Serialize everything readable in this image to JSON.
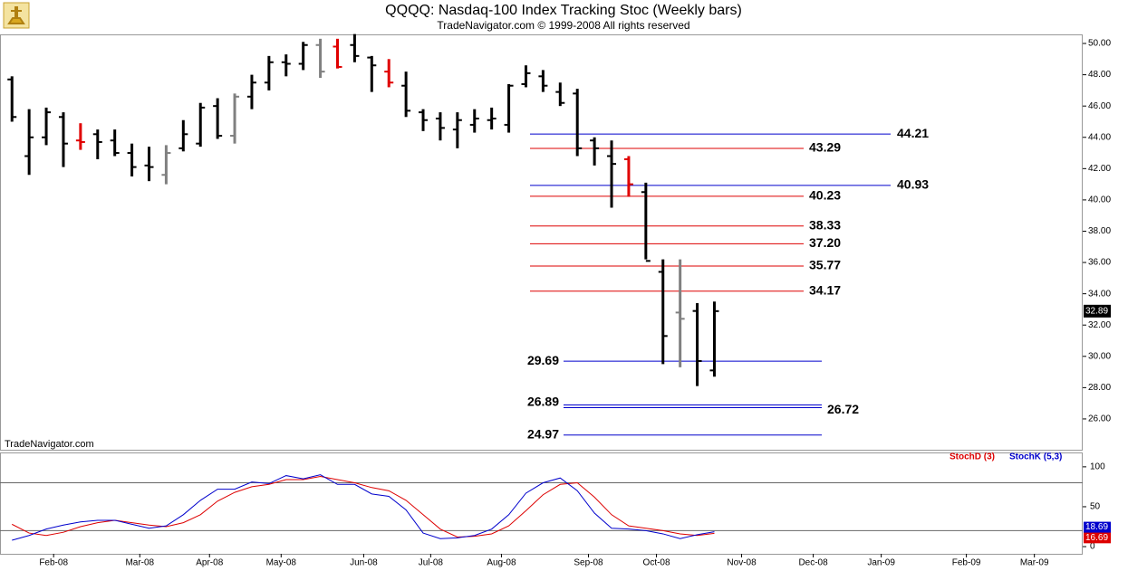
{
  "chart_data": [
    {
      "type": "ohlc",
      "title": "QQQQ:  Nasdaq-100 Index Tracking Stoc  (Weekly bars)",
      "subtitle": "TradeNavigator.com © 1999-2008 All rights reserved",
      "annotation": "TradeNavigator.com",
      "x": [
        0,
        1,
        2,
        3,
        4,
        5,
        6,
        7,
        8,
        9,
        10,
        11,
        12,
        13,
        14,
        15,
        16,
        17,
        18,
        19,
        20,
        21,
        22,
        23,
        24,
        25,
        26,
        27,
        28,
        29,
        30,
        31,
        32,
        33,
        34,
        35,
        36,
        37,
        38,
        39,
        40,
        41
      ],
      "open": [
        47.7,
        42.8,
        44.0,
        45.3,
        43.8,
        44.2,
        43.8,
        43.0,
        42.2,
        41.6,
        43.3,
        43.6,
        46.0,
        44.1,
        46.6,
        47.5,
        48.8,
        48.7,
        49.9,
        49.8,
        49.9,
        49.1,
        48.2,
        47.3,
        45.6,
        45.2,
        44.5,
        44.8,
        45.1,
        44.8,
        47.4,
        47.9,
        46.9,
        46.8,
        43.8,
        42.8,
        42.6,
        40.5,
        35.4,
        32.8,
        32.9,
        29.1
      ],
      "high": [
        47.9,
        45.8,
        45.9,
        45.6,
        44.9,
        44.5,
        44.5,
        43.6,
        43.4,
        43.5,
        45.1,
        46.2,
        46.5,
        46.8,
        48.0,
        49.2,
        49.3,
        50.1,
        50.3,
        50.3,
        50.6,
        49.2,
        49.0,
        48.2,
        45.8,
        45.6,
        45.6,
        45.8,
        45.9,
        47.4,
        48.6,
        48.3,
        47.5,
        47.1,
        44.0,
        43.8,
        42.8,
        41.1,
        36.2,
        36.2,
        33.4,
        33.5
      ],
      "low": [
        45.0,
        41.6,
        43.5,
        42.1,
        43.2,
        42.6,
        42.8,
        41.5,
        41.2,
        41.0,
        43.1,
        43.4,
        43.9,
        43.6,
        45.8,
        47.0,
        47.9,
        48.3,
        47.8,
        48.4,
        48.8,
        46.9,
        47.2,
        45.3,
        44.4,
        43.8,
        43.3,
        44.3,
        44.5,
        44.3,
        47.2,
        46.9,
        46.0,
        42.8,
        42.2,
        39.5,
        40.2,
        36.2,
        29.5,
        29.3,
        28.1,
        28.7
      ],
      "close": [
        45.3,
        44.0,
        45.6,
        43.6,
        43.7,
        43.7,
        43.0,
        42.1,
        42.1,
        43.0,
        44.2,
        45.9,
        44.1,
        46.6,
        47.5,
        48.8,
        48.7,
        49.9,
        48.2,
        48.5,
        49.2,
        48.6,
        47.5,
        45.7,
        45.1,
        44.6,
        45.1,
        45.2,
        45.2,
        47.3,
        48.1,
        47.3,
        46.2,
        43.3,
        43.3,
        42.3,
        41.0,
        36.1,
        31.3,
        32.4,
        29.7,
        32.89
      ],
      "colors": [
        "#000",
        "#000",
        "#000",
        "#000",
        "#e00000",
        "#000",
        "#000",
        "#000",
        "#000",
        "#808080",
        "#000",
        "#000",
        "#000",
        "#808080",
        "#000",
        "#000",
        "#000",
        "#000",
        "#808080",
        "#e00000",
        "#000",
        "#000",
        "#e00000",
        "#000",
        "#000",
        "#000",
        "#000",
        "#000",
        "#000",
        "#000",
        "#000",
        "#000",
        "#000",
        "#000",
        "#000",
        "#000",
        "#e00000",
        "#000",
        "#000",
        "#808080",
        "#000",
        "#000"
      ],
      "last_value": 32.89,
      "levels": [
        {
          "value": 44.21,
          "label": "44.21",
          "color": "#0000cc"
        },
        {
          "value": 43.29,
          "label": "43.29",
          "color": "#dd0000"
        },
        {
          "value": 40.93,
          "label": "40.93",
          "color": "#0000cc"
        },
        {
          "value": 40.23,
          "label": "40.23",
          "color": "#dd0000"
        },
        {
          "value": 38.33,
          "label": "38.33",
          "color": "#dd0000"
        },
        {
          "value": 37.2,
          "label": "37.20",
          "color": "#dd0000"
        },
        {
          "value": 35.77,
          "label": "35.77",
          "color": "#dd0000"
        },
        {
          "value": 34.17,
          "label": "34.17",
          "color": "#dd0000"
        },
        {
          "value": 29.69,
          "label": "29.69",
          "color": "#0000cc"
        },
        {
          "value": 26.89,
          "label": "26.89",
          "color": "#0000cc"
        },
        {
          "value": 26.72,
          "label": "26.72",
          "color": "#0000cc"
        },
        {
          "value": 24.97,
          "label": "24.97",
          "color": "#0000cc"
        }
      ],
      "xlim": [
        -0.7,
        62.5
      ],
      "ylim": [
        24.03,
        50.58
      ],
      "yticks": [
        {
          "value": 26,
          "label": "26.00"
        },
        {
          "value": 28,
          "label": "28.00"
        },
        {
          "value": 30,
          "label": "30.00"
        },
        {
          "value": 32,
          "label": "32.00"
        },
        {
          "value": 34,
          "label": "34.00"
        },
        {
          "value": 36,
          "label": "36.00"
        },
        {
          "value": 38,
          "label": "38.00"
        },
        {
          "value": 40,
          "label": "40.00"
        },
        {
          "value": 42,
          "label": "42.00"
        },
        {
          "value": 44,
          "label": "44.00"
        },
        {
          "value": 46,
          "label": "46.00"
        },
        {
          "value": 48,
          "label": "48.00"
        },
        {
          "value": 50,
          "label": "50.00"
        }
      ]
    },
    {
      "type": "line",
      "x": [
        0,
        1,
        2,
        3,
        4,
        5,
        6,
        7,
        8,
        9,
        10,
        11,
        12,
        13,
        14,
        15,
        16,
        17,
        18,
        19,
        20,
        21,
        22,
        23,
        24,
        25,
        26,
        27,
        28,
        29,
        30,
        31,
        32,
        33,
        34,
        35,
        36,
        37,
        38,
        39,
        40,
        41
      ],
      "series": [
        {
          "name": "StochD (3)",
          "color": "#dd0000",
          "values": [
            28,
            17,
            14,
            18,
            25,
            30,
            33,
            30,
            27,
            25,
            30,
            40,
            57,
            68,
            75,
            78,
            84,
            84,
            88,
            84,
            80,
            74,
            70,
            58,
            40,
            22,
            12,
            13,
            16,
            26,
            45,
            65,
            78,
            80,
            62,
            40,
            26,
            23,
            20,
            16,
            14,
            16.69
          ]
        },
        {
          "name": "StochK (5,3)",
          "color": "#0000cc",
          "values": [
            8,
            14,
            22,
            27,
            31,
            33,
            33,
            28,
            23,
            26,
            40,
            58,
            72,
            72,
            81,
            79,
            89,
            85,
            90,
            78,
            78,
            66,
            63,
            46,
            17,
            10,
            11,
            14,
            22,
            40,
            67,
            80,
            86,
            70,
            42,
            23,
            22,
            20,
            16,
            10,
            15,
            18.69
          ]
        }
      ],
      "hlines": [
        80,
        20
      ],
      "xlim": [
        -0.7,
        62.5
      ],
      "ylim": [
        -9,
        118
      ],
      "yticks": [
        0,
        50,
        100
      ],
      "xticks": [
        {
          "value": 2.43,
          "label": "Feb-08"
        },
        {
          "value": 7.46,
          "label": "Mar-08"
        },
        {
          "value": 11.53,
          "label": "Apr-08"
        },
        {
          "value": 15.71,
          "label": "May-08"
        },
        {
          "value": 20.53,
          "label": "Jun-08"
        },
        {
          "value": 24.44,
          "label": "Jul-08"
        },
        {
          "value": 28.57,
          "label": "Aug-08"
        },
        {
          "value": 33.65,
          "label": "Sep-08"
        },
        {
          "value": 37.62,
          "label": "Oct-08"
        },
        {
          "value": 42.59,
          "label": "Nov-08"
        },
        {
          "value": 46.77,
          "label": "Dec-08"
        },
        {
          "value": 50.74,
          "label": "Jan-09"
        },
        {
          "value": 55.71,
          "label": "Feb-09"
        },
        {
          "value": 59.68,
          "label": "Mar-09"
        }
      ]
    }
  ]
}
